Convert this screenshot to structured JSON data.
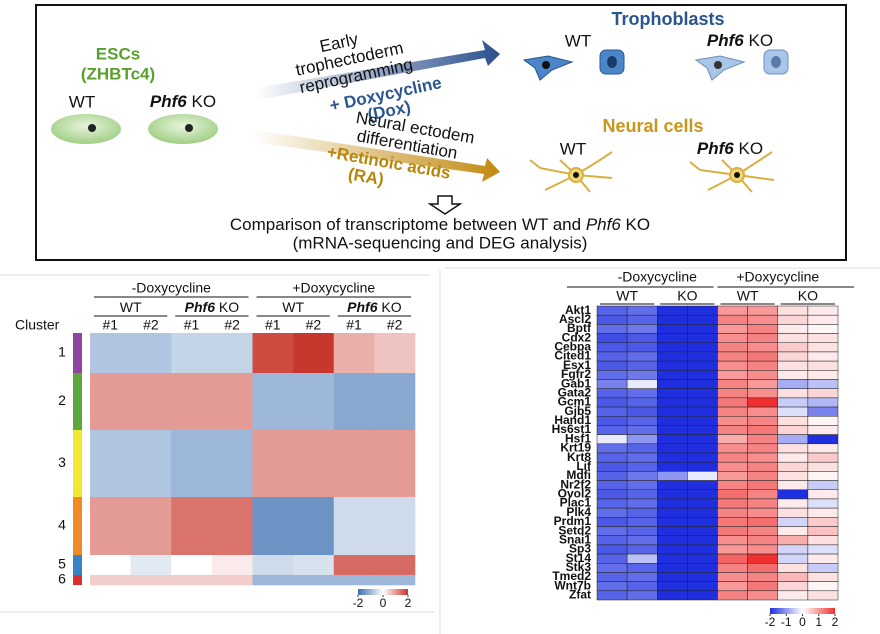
{
  "diagram": {
    "esc_title": "ESCs",
    "esc_subtitle": "(ZHBTc4)",
    "esc_wt": "WT",
    "esc_ko": {
      "gene": "Phf6",
      "suffix": "KO"
    },
    "top_arrow": {
      "lines": [
        "Early",
        "trophectoderm",
        "reprogramming"
      ],
      "treatment": [
        "+ Doxycycline",
        "(Dox)"
      ]
    },
    "bottom_arrow": {
      "lines": [
        "Neural ectodem",
        "differentiation"
      ],
      "treatment": [
        "+Retinoic acids",
        "(RA)"
      ]
    },
    "trophoblasts": {
      "title": "Trophoblasts",
      "wt": "WT",
      "ko": {
        "gene": "Phf6",
        "suffix": "KO"
      }
    },
    "neural": {
      "title": "Neural cells",
      "wt": "WT",
      "ko": {
        "gene": "Phf6",
        "suffix": "KO"
      }
    },
    "comparison": [
      "Comparison of transcriptome between WT and",
      "Phf6",
      "KO"
    ],
    "comparison_line2": "(mRNA-sequencing  and DEG analysis)"
  },
  "cluster_heatmap": {
    "groups": [
      "-Doxycycline",
      "+Doxycycline"
    ],
    "genotypes": [
      {
        "gene": "WT"
      },
      {
        "gene": "Phf6",
        "suffix": "KO"
      }
    ],
    "replicates": [
      "#1",
      "#2"
    ],
    "cluster_label": "Cluster",
    "clusters": [
      {
        "name": "1",
        "color": "#8e44a0",
        "values": [
          -0.8,
          -0.8,
          -0.6,
          -0.6,
          1.8,
          2,
          0.8,
          0.6
        ]
      },
      {
        "name": "2",
        "color": "#5aa83c",
        "values": [
          1,
          1,
          1,
          1,
          -1,
          -1,
          -1.2,
          -1.2
        ]
      },
      {
        "name": "3",
        "color": "#f2e832",
        "values": [
          -0.8,
          -0.8,
          -1,
          -1,
          1,
          1,
          1,
          1
        ]
      },
      {
        "name": "4",
        "color": "#f08a24",
        "values": [
          1,
          1,
          1.4,
          1.4,
          -1.5,
          -1.5,
          -0.5,
          -0.5
        ]
      },
      {
        "name": "5",
        "color": "#3a82c8",
        "values": [
          0,
          -0.3,
          0,
          0.2,
          -0.5,
          -0.4,
          1.5,
          1.5
        ]
      },
      {
        "name": "6",
        "color": "#d83030",
        "values": [
          0.5,
          0.5,
          0.5,
          0.5,
          -1,
          -1,
          -1,
          -1
        ]
      }
    ],
    "key_ticks": [
      -2,
      0,
      2
    ],
    "key_lim": [
      -2,
      2
    ]
  },
  "gene_heatmap": {
    "groups": [
      "-Doxycycline",
      "+Doxycycline"
    ],
    "genotypes": [
      "WT",
      "KO"
    ],
    "genes": [
      "Akt1",
      "Ascl2",
      "Bptf",
      "Cdx2",
      "Cebpa",
      "Cited1",
      "Esx1",
      "Fgfr2",
      "Gab1",
      "Gata2",
      "Gcm1",
      "Gjb5",
      "Hand1",
      "Hs6st1",
      "Hsf1",
      "Krt19",
      "Krt8",
      "Lif",
      "Mdfi",
      "Nr2f2",
      "Ovol2",
      "Plac1",
      "Plk4",
      "Prdm1",
      "Setd2",
      "Snai1",
      "Sp3",
      "St14",
      "Stk3",
      "Tmed2",
      "Wnt7b",
      "Zfat"
    ],
    "values": [
      [
        -1.5,
        -1.4,
        -2,
        -2,
        1,
        1,
        0.3,
        0.2
      ],
      [
        -1.6,
        -1.5,
        -2,
        -2,
        1.2,
        1.1,
        0.4,
        0.2
      ],
      [
        -1.4,
        -1.3,
        -2,
        -2,
        1,
        1.2,
        0.2,
        0.1
      ],
      [
        -1.7,
        -1.6,
        -2,
        -2,
        1.1,
        1.2,
        0.3,
        0.3
      ],
      [
        -1.6,
        -1.6,
        -2,
        -2,
        1.2,
        1.1,
        0.5,
        0.3
      ],
      [
        -1.5,
        -1.4,
        -2,
        -2,
        1.2,
        1.3,
        0.4,
        0.2
      ],
      [
        -1.6,
        -1.5,
        -2,
        -2,
        1.1,
        1.2,
        0.3,
        0.3
      ],
      [
        -1.4,
        -1.3,
        -2,
        -2,
        1,
        1.1,
        0.2,
        0.2
      ],
      [
        -1.2,
        -0.2,
        -2,
        -2,
        1.2,
        1,
        -0.8,
        -0.6
      ],
      [
        -1.5,
        -1.4,
        -2,
        -2,
        1.2,
        1.1,
        0.3,
        0.4
      ],
      [
        -1.6,
        -1.5,
        -2,
        -2,
        1.3,
        2,
        -0.5,
        -0.7
      ],
      [
        -1.5,
        -1.6,
        -2,
        -2,
        1.2,
        1.1,
        -0.3,
        -1.2
      ],
      [
        -1.6,
        -1.5,
        -2,
        -2,
        1.1,
        1.2,
        0.3,
        0.1
      ],
      [
        -1.5,
        -1.4,
        -2,
        -2,
        1.2,
        1.3,
        0.4,
        0.2
      ],
      [
        -0.2,
        -1,
        -2,
        -2,
        0.8,
        1.2,
        -0.8,
        -2
      ],
      [
        -1.4,
        -1.5,
        -2,
        -2,
        1.1,
        1.2,
        0.3,
        0.2
      ],
      [
        -1.5,
        -1.4,
        -2,
        -2,
        1.2,
        1.1,
        0.2,
        0.5
      ],
      [
        -1.6,
        -1.5,
        -2,
        -2,
        1.1,
        1.2,
        0.4,
        0.3
      ],
      [
        -1.5,
        -1.3,
        -1,
        -0.2,
        1,
        1.2,
        0.3,
        0.1
      ],
      [
        -1.5,
        -1.4,
        -2,
        -2,
        1.2,
        1.3,
        0.2,
        -0.5
      ],
      [
        -1.6,
        -1.5,
        -2,
        -2,
        1.4,
        1.2,
        -2,
        0.2
      ],
      [
        -1.5,
        -1.4,
        -2,
        -2,
        1.3,
        1.2,
        0.2,
        -0.3
      ],
      [
        -1.4,
        -1.5,
        -2,
        -2,
        1.2,
        1.1,
        0.3,
        0.2
      ],
      [
        -1.6,
        -1.5,
        -2,
        -2,
        1.3,
        1.4,
        -0.4,
        0.5
      ],
      [
        -1.4,
        -1.5,
        -2,
        -2,
        1.3,
        1.2,
        0.2,
        0.6
      ],
      [
        -1.5,
        -1.4,
        -2,
        -2,
        1.1,
        1.2,
        0.8,
        0.3
      ],
      [
        -1.6,
        -1.5,
        -2,
        -2,
        1,
        1.1,
        -0.4,
        -0.3
      ],
      [
        -1.5,
        -0.6,
        -2,
        -2,
        1.5,
        2,
        -0.4,
        0.2
      ],
      [
        -1.4,
        -1.5,
        -2,
        -2,
        1.2,
        1.4,
        0.3,
        -0.5
      ],
      [
        -1.5,
        -1.4,
        -2,
        -2,
        1.1,
        1.2,
        0.7,
        0.3
      ],
      [
        -1.4,
        -1.5,
        -2,
        -2,
        1,
        1.3,
        0.4,
        0.1
      ],
      [
        -1.5,
        -1.4,
        -2,
        -2,
        1.2,
        1.1,
        0.2,
        0.3
      ]
    ],
    "key_ticks": [
      -2,
      -1,
      0,
      1,
      2
    ],
    "key_lim": [
      -2,
      2
    ]
  }
}
